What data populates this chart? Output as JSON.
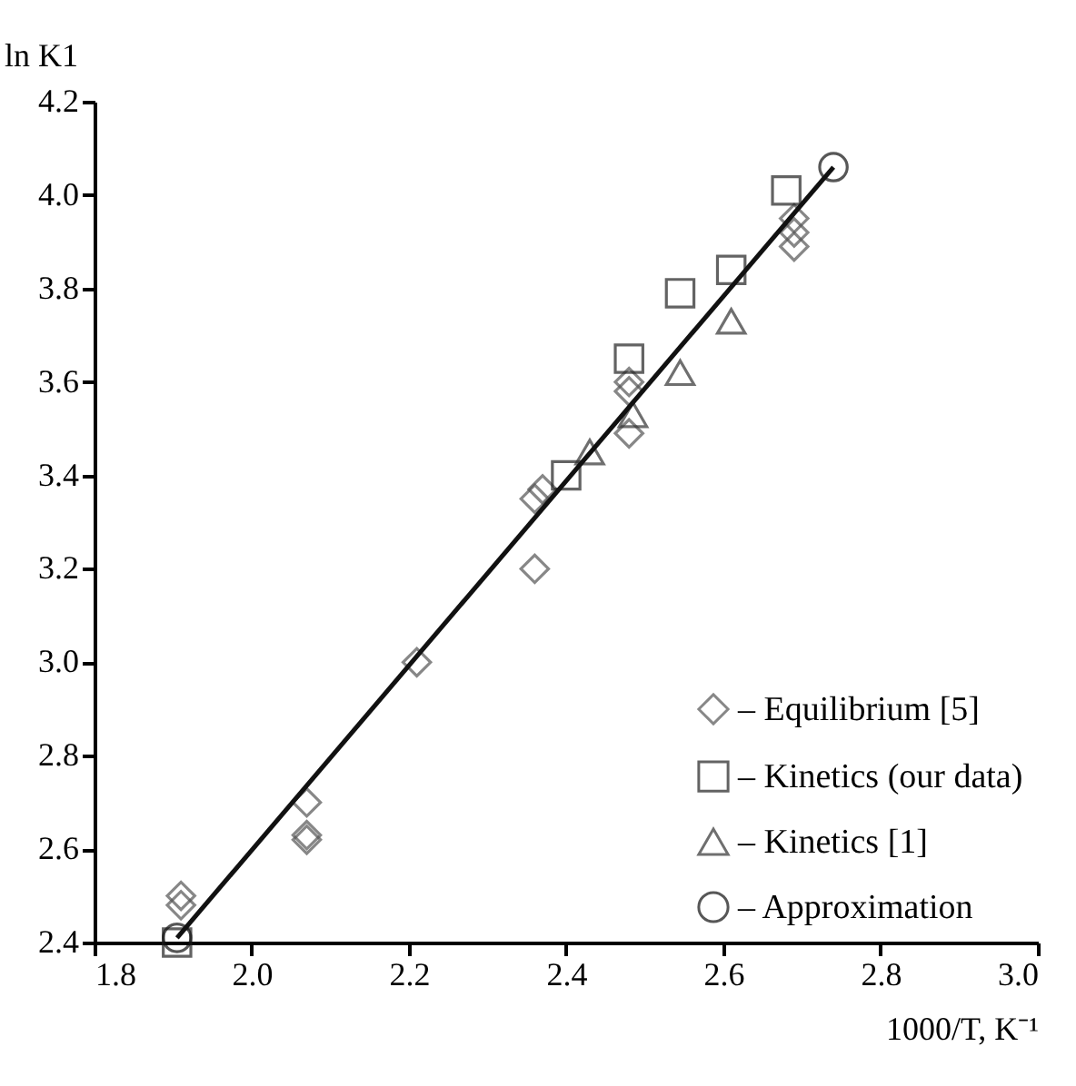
{
  "chart_data": {
    "type": "scatter",
    "xlabel": "1000/T, K⁻¹",
    "ylabel": "ln K1",
    "xlim": [
      1.8,
      3.0
    ],
    "xticks": [
      1.8,
      {
        "value": 2.0,
        "label": "2.0"
      },
      2.2,
      2.4,
      2.6,
      2.8,
      {
        "value": 3.0,
        "label": "3.0"
      }
    ],
    "ylim": [
      2.4,
      4.2
    ],
    "yticks": [
      2.4,
      2.6,
      2.8,
      {
        "value": 3.0,
        "label": "3.0"
      },
      3.2,
      3.4,
      3.6,
      3.8,
      {
        "value": 4.0,
        "label": "4.0"
      },
      4.2
    ],
    "grid": false,
    "legend": "bottom right",
    "series": [
      {
        "name": "– Equilibrium [5]",
        "color": "#555555",
        "marker": "diamond",
        "x": [
          1.91,
          1.91,
          2.07,
          2.07,
          2.07,
          2.21,
          2.36,
          2.36,
          2.37,
          2.48,
          2.48,
          2.48,
          2.69,
          2.69,
          2.69
        ],
        "values": [
          2.5,
          2.48,
          2.7,
          2.63,
          2.62,
          3.0,
          3.2,
          3.35,
          3.37,
          3.49,
          3.58,
          3.6,
          3.89,
          3.92,
          3.95
        ]
      },
      {
        "name": "– Kinetics (our data)",
        "color": "#222222",
        "marker": "square",
        "x": [
          1.905,
          2.4,
          2.48,
          2.545,
          2.61,
          2.68
        ],
        "values": [
          2.4,
          3.4,
          3.65,
          3.79,
          3.84,
          4.01
        ]
      },
      {
        "name": "– Kinetics [1]",
        "color": "#333333",
        "marker": "triangle",
        "x": [
          2.43,
          2.485,
          2.545,
          2.61
        ],
        "values": [
          3.45,
          3.53,
          3.62,
          3.73
        ]
      },
      {
        "name": "– Approximation",
        "color": "#111111",
        "marker": "circle",
        "type": "line",
        "x": [
          1.905,
          2.74
        ],
        "values": [
          2.41,
          4.06
        ]
      }
    ]
  }
}
